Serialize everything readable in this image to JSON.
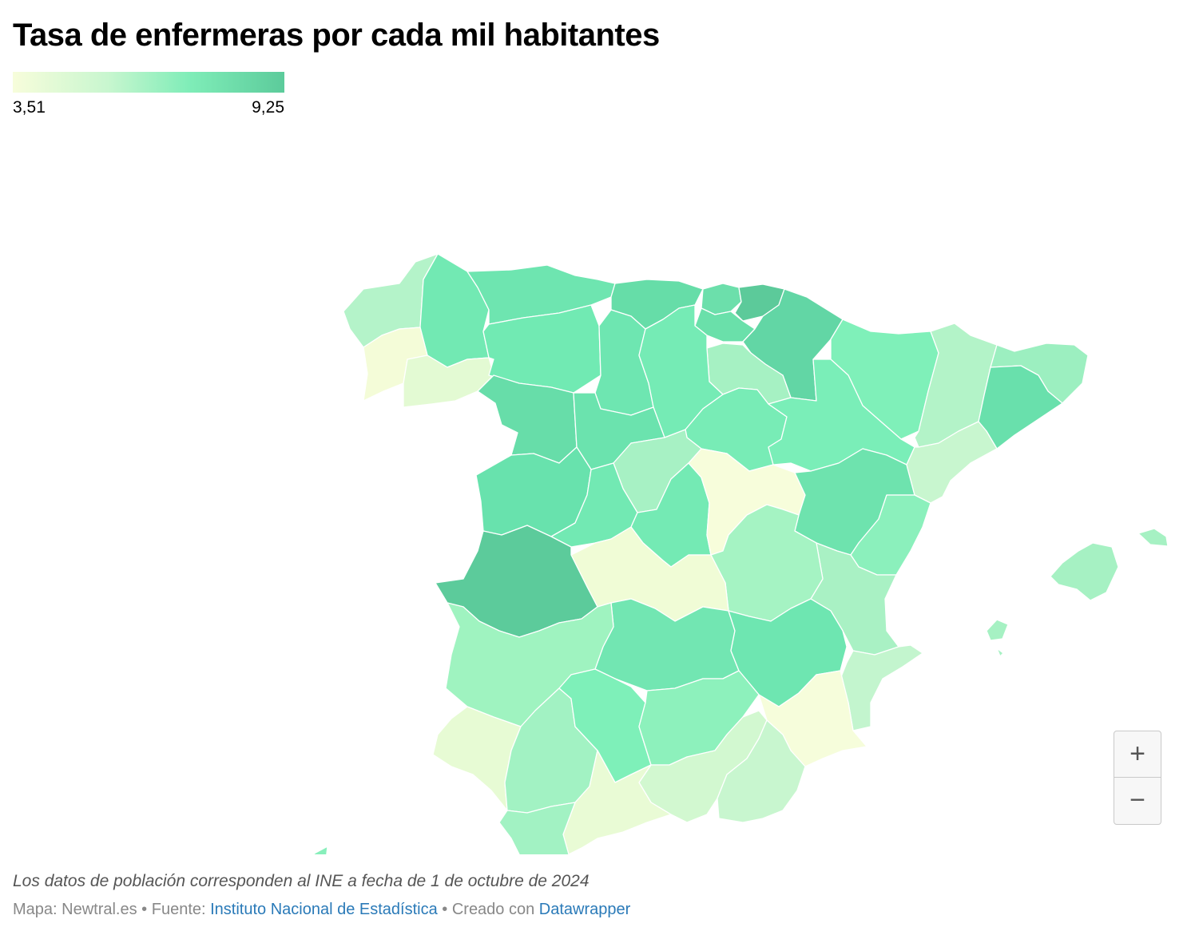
{
  "title": "Tasa de enfermeras por cada mil habitantes",
  "legend": {
    "min_label": "3,51",
    "max_label": "9,25",
    "colors": [
      "#f7fddb",
      "#c8f6cf",
      "#7fedb8",
      "#5ccb9b"
    ]
  },
  "map": {
    "regions": [
      {
        "name": "A Coruña",
        "color": "#b4f3c9"
      },
      {
        "name": "Lugo",
        "color": "#72e9b3"
      },
      {
        "name": "Pontevedra",
        "color": "#f4fcd8"
      },
      {
        "name": "Ourense",
        "color": "#e3fad3"
      },
      {
        "name": "Asturias",
        "color": "#6ee5b0"
      },
      {
        "name": "Cantabria",
        "color": "#66dda8"
      },
      {
        "name": "Bizkaia",
        "color": "#6cdfab"
      },
      {
        "name": "Gipuzkoa",
        "color": "#5cca9a"
      },
      {
        "name": "Araba/Álava",
        "color": "#6ae0aa"
      },
      {
        "name": "Navarra",
        "color": "#62d6a5"
      },
      {
        "name": "La Rioja",
        "color": "#a6f1c3"
      },
      {
        "name": "León",
        "color": "#71eab3"
      },
      {
        "name": "Palencia",
        "color": "#6ee6b1"
      },
      {
        "name": "Burgos",
        "color": "#75ebb5"
      },
      {
        "name": "Zamora",
        "color": "#67dda9"
      },
      {
        "name": "Valladolid",
        "color": "#6be3ae"
      },
      {
        "name": "Soria",
        "color": "#78ecb6"
      },
      {
        "name": "Salamanca",
        "color": "#68e2ad"
      },
      {
        "name": "Segovia",
        "color": "#a7f1c4"
      },
      {
        "name": "Ávila",
        "color": "#72e9b3"
      },
      {
        "name": "Madrid",
        "color": "#74eab4"
      },
      {
        "name": "Guadalajara",
        "color": "#f7fddb"
      },
      {
        "name": "Huesca",
        "color": "#7ff0b9"
      },
      {
        "name": "Zaragoza",
        "color": "#7aeeb8"
      },
      {
        "name": "Teruel",
        "color": "#6ee3ae"
      },
      {
        "name": "Lleida",
        "color": "#b3f3c8"
      },
      {
        "name": "Girona",
        "color": "#9cefc0"
      },
      {
        "name": "Barcelona",
        "color": "#69e0ac"
      },
      {
        "name": "Tarragona",
        "color": "#c8f6cf"
      },
      {
        "name": "Castellón",
        "color": "#8bf0bc"
      },
      {
        "name": "Valencia",
        "color": "#a9f1c4"
      },
      {
        "name": "Alicante",
        "color": "#c3f5ce"
      },
      {
        "name": "Cuenca",
        "color": "#a5f3c3"
      },
      {
        "name": "Toledo",
        "color": "#f0fcd6"
      },
      {
        "name": "Cáceres",
        "color": "#5ccb9b"
      },
      {
        "name": "Badajoz",
        "color": "#9ff3c0"
      },
      {
        "name": "Ciudad Real",
        "color": "#72e6b2"
      },
      {
        "name": "Albacete",
        "color": "#6ee6b1"
      },
      {
        "name": "Murcia",
        "color": "#f6fddb"
      },
      {
        "name": "Huelva",
        "color": "#e7fbd4"
      },
      {
        "name": "Sevilla",
        "color": "#a2f2c3"
      },
      {
        "name": "Córdoba",
        "color": "#7ef0b9"
      },
      {
        "name": "Jaén",
        "color": "#8df1bc"
      },
      {
        "name": "Granada",
        "color": "#d2f8d0"
      },
      {
        "name": "Almería",
        "color": "#c8f6cf"
      },
      {
        "name": "Málaga",
        "color": "#e9fbd5"
      },
      {
        "name": "Cádiz",
        "color": "#a2f2c3"
      },
      {
        "name": "Illes Balears",
        "color": "#a6f1c3"
      },
      {
        "name": "Santa Cruz de Tenerife",
        "color": "#6ee8b1"
      },
      {
        "name": "Las Palmas",
        "color": "#88efbb"
      }
    ]
  },
  "zoom": {
    "plus_label": "+",
    "minus_label": "−"
  },
  "footer": {
    "note": "Los datos de población corresponden al INE a fecha de 1 de octubre de 2024",
    "prefix": "Mapa: Newtral.es • Fuente: ",
    "source_link": "Instituto Nacional de Estadística",
    "middle": " • Creado con ",
    "tool_link": "Datawrapper"
  }
}
